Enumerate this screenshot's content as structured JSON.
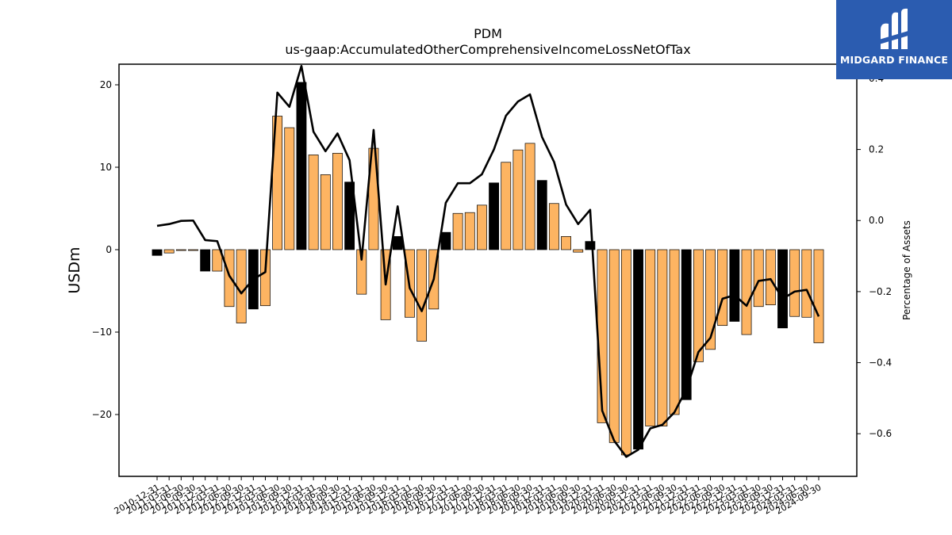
{
  "chart_data": {
    "type": "bar",
    "title": "PDM",
    "subtitle": "us-gaap:AccumulatedOtherComprehensiveIncomeLossNetOfTax",
    "ylabel": "USDm",
    "y2label": "Percentage of Assets",
    "ylim": [
      -27.5,
      22.5
    ],
    "y2lim": [
      -0.72,
      0.44
    ],
    "yticks": [
      -20,
      -10,
      0,
      10,
      20
    ],
    "y2ticks": [
      -0.6,
      -0.4,
      -0.2,
      0.0,
      0.2,
      0.4
    ],
    "legend": "none",
    "grid": false,
    "colors": {
      "bar_default": "#fdb462",
      "bar_q4": "#000000",
      "line": "#000000"
    },
    "categories": [
      "2010-12-31",
      "2011-03-31",
      "2011-06-30",
      "2011-09-30",
      "2011-12-31",
      "2012-03-31",
      "2012-06-30",
      "2012-09-30",
      "2012-12-31",
      "2013-03-31",
      "2013-06-30",
      "2013-09-30",
      "2013-12-31",
      "2014-03-31",
      "2014-06-30",
      "2014-09-30",
      "2014-12-31",
      "2015-03-31",
      "2015-06-30",
      "2015-09-30",
      "2015-12-31",
      "2016-03-31",
      "2016-06-30",
      "2016-09-30",
      "2016-12-31",
      "2017-03-31",
      "2017-06-30",
      "2017-09-30",
      "2017-12-31",
      "2018-03-31",
      "2018-06-30",
      "2018-09-30",
      "2018-12-31",
      "2019-03-31",
      "2019-06-30",
      "2019-09-30",
      "2019-12-31",
      "2020-03-31",
      "2020-06-30",
      "2020-09-30",
      "2020-12-31",
      "2021-03-31",
      "2021-06-30",
      "2021-09-30",
      "2021-12-31",
      "2022-03-31",
      "2022-06-30",
      "2022-09-30",
      "2022-12-31",
      "2023-03-31",
      "2023-06-30",
      "2023-09-30",
      "2023-12-31",
      "2024-03-31",
      "2024-06-30",
      "2024-09-30"
    ],
    "x_tick_labels": [
      "2010-12-31",
      "2011-03-31",
      "2011-06-30",
      "2011-09-30",
      "2011-12-31",
      "2012-03-31",
      "2012-06-30",
      "2012-09-30",
      "2012-12-31",
      "2013-03-31",
      "2013-06-30",
      "2013-09-30",
      "2013-12-31",
      "2014-03-31",
      "2014-06-30",
      "2014-09-30",
      "2014-12-31",
      "2015-03-31",
      "2015-06-30",
      "2015-09-30",
      "2015-12-31",
      "2016-03-31",
      "2016-06-30",
      "2016-09-30",
      "2016-12-31",
      "2017-03-31",
      "2017-06-30",
      "2017-09-30",
      "2017-12-31",
      "2018-03-31",
      "2018-06-30",
      "2018-09-30",
      "2018-12-31",
      "2019-03-31",
      "2019-06-30",
      "2019-09-30",
      "2019-12-31",
      "2020-03-31",
      "2020-06-30",
      "2020-09-30",
      "2020-12-31",
      "2021-03-31",
      "2021-06-30",
      "2021-09-30",
      "2021-12-31",
      "2022-03-31",
      "2022-06-30",
      "2022-09-30",
      "2022-12-31",
      "2023-03-31",
      "2023-06-30",
      "2023-09-30",
      "2023-12-31",
      "2024-03-31",
      "2024-06-30",
      "2024-09-30"
    ],
    "series": [
      {
        "type": "bar",
        "axis": "left",
        "values": [
          -0.7,
          -0.4,
          -0.1,
          -0.1,
          -2.6,
          -2.6,
          -6.9,
          -8.9,
          -7.2,
          -6.8,
          16.2,
          14.8,
          20.3,
          11.5,
          9.1,
          11.7,
          8.2,
          -5.4,
          12.3,
          -8.5,
          1.6,
          -8.2,
          -11.1,
          -7.2,
          2.1,
          4.4,
          4.5,
          5.4,
          8.1,
          10.6,
          12.1,
          12.9,
          8.4,
          5.6,
          1.6,
          -0.3,
          1.0,
          -21.0,
          -23.4,
          -24.9,
          -24.2,
          -21.4,
          -21.4,
          -20.0,
          -18.2,
          -13.6,
          -12.1,
          -9.2,
          -8.7,
          -10.3,
          -6.9,
          -6.7,
          -9.5,
          -8.1,
          -8.2,
          -11.3
        ]
      },
      {
        "type": "line",
        "axis": "right",
        "values": [
          -0.015,
          -0.01,
          -0.001,
          0.0,
          -0.055,
          -0.058,
          -0.155,
          -0.205,
          -0.165,
          -0.145,
          0.36,
          0.32,
          0.435,
          0.25,
          0.195,
          0.245,
          0.17,
          -0.11,
          0.255,
          -0.18,
          0.04,
          -0.19,
          -0.255,
          -0.165,
          0.05,
          0.105,
          0.105,
          0.13,
          0.2,
          0.295,
          0.335,
          0.355,
          0.235,
          0.165,
          0.045,
          -0.01,
          0.03,
          -0.535,
          -0.62,
          -0.665,
          -0.645,
          -0.585,
          -0.575,
          -0.54,
          -0.475,
          -0.37,
          -0.33,
          -0.22,
          -0.21,
          -0.24,
          -0.17,
          -0.165,
          -0.22,
          -0.2,
          -0.195,
          -0.27
        ]
      }
    ]
  },
  "logo": {
    "text": "MIDGARD FINANCE"
  }
}
